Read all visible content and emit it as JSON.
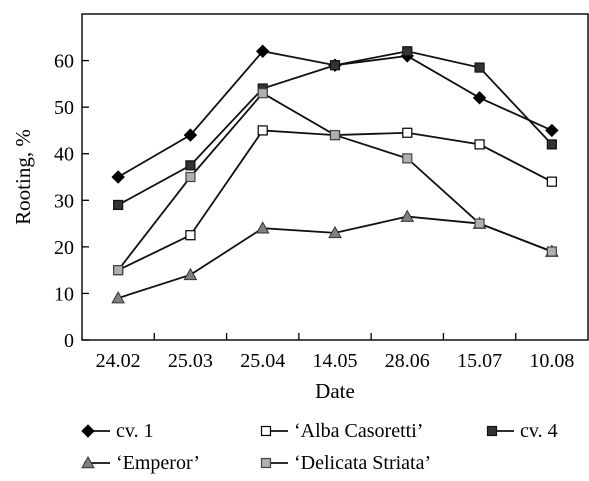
{
  "chart_data": {
    "type": "line",
    "title": "",
    "xlabel": "Date",
    "ylabel": "Rooting, %",
    "categories": [
      "24.02",
      "25.03",
      "25.04",
      "14.05",
      "28.06",
      "15.07",
      "10.08"
    ],
    "ylim": [
      0,
      70
    ],
    "yticks": [
      0,
      10,
      20,
      30,
      40,
      50,
      60
    ],
    "grid": false,
    "legend_position": "bottom",
    "series": [
      {
        "name": "cv. 1",
        "marker": "diamond",
        "color": "#000000",
        "values": [
          35,
          44,
          62,
          59,
          61,
          52,
          45
        ]
      },
      {
        "name": "‘Alba Casoretti’",
        "marker": "square-open",
        "color": "#000000",
        "values": [
          15,
          22.5,
          45,
          44,
          44.5,
          42,
          34
        ]
      },
      {
        "name": "cv. 4",
        "marker": "square-dark",
        "color": "#333333",
        "values": [
          29,
          37.5,
          54,
          59,
          62,
          58.5,
          42
        ]
      },
      {
        "name": "‘Emperor’",
        "marker": "triangle",
        "color": "#888888",
        "values": [
          9,
          14,
          24,
          23,
          26.5,
          25,
          19
        ]
      },
      {
        "name": "‘Delicata Striata’",
        "marker": "square-gray",
        "color": "#aaaaaa",
        "values": [
          15,
          35,
          53,
          44,
          39,
          25,
          19
        ]
      }
    ]
  }
}
